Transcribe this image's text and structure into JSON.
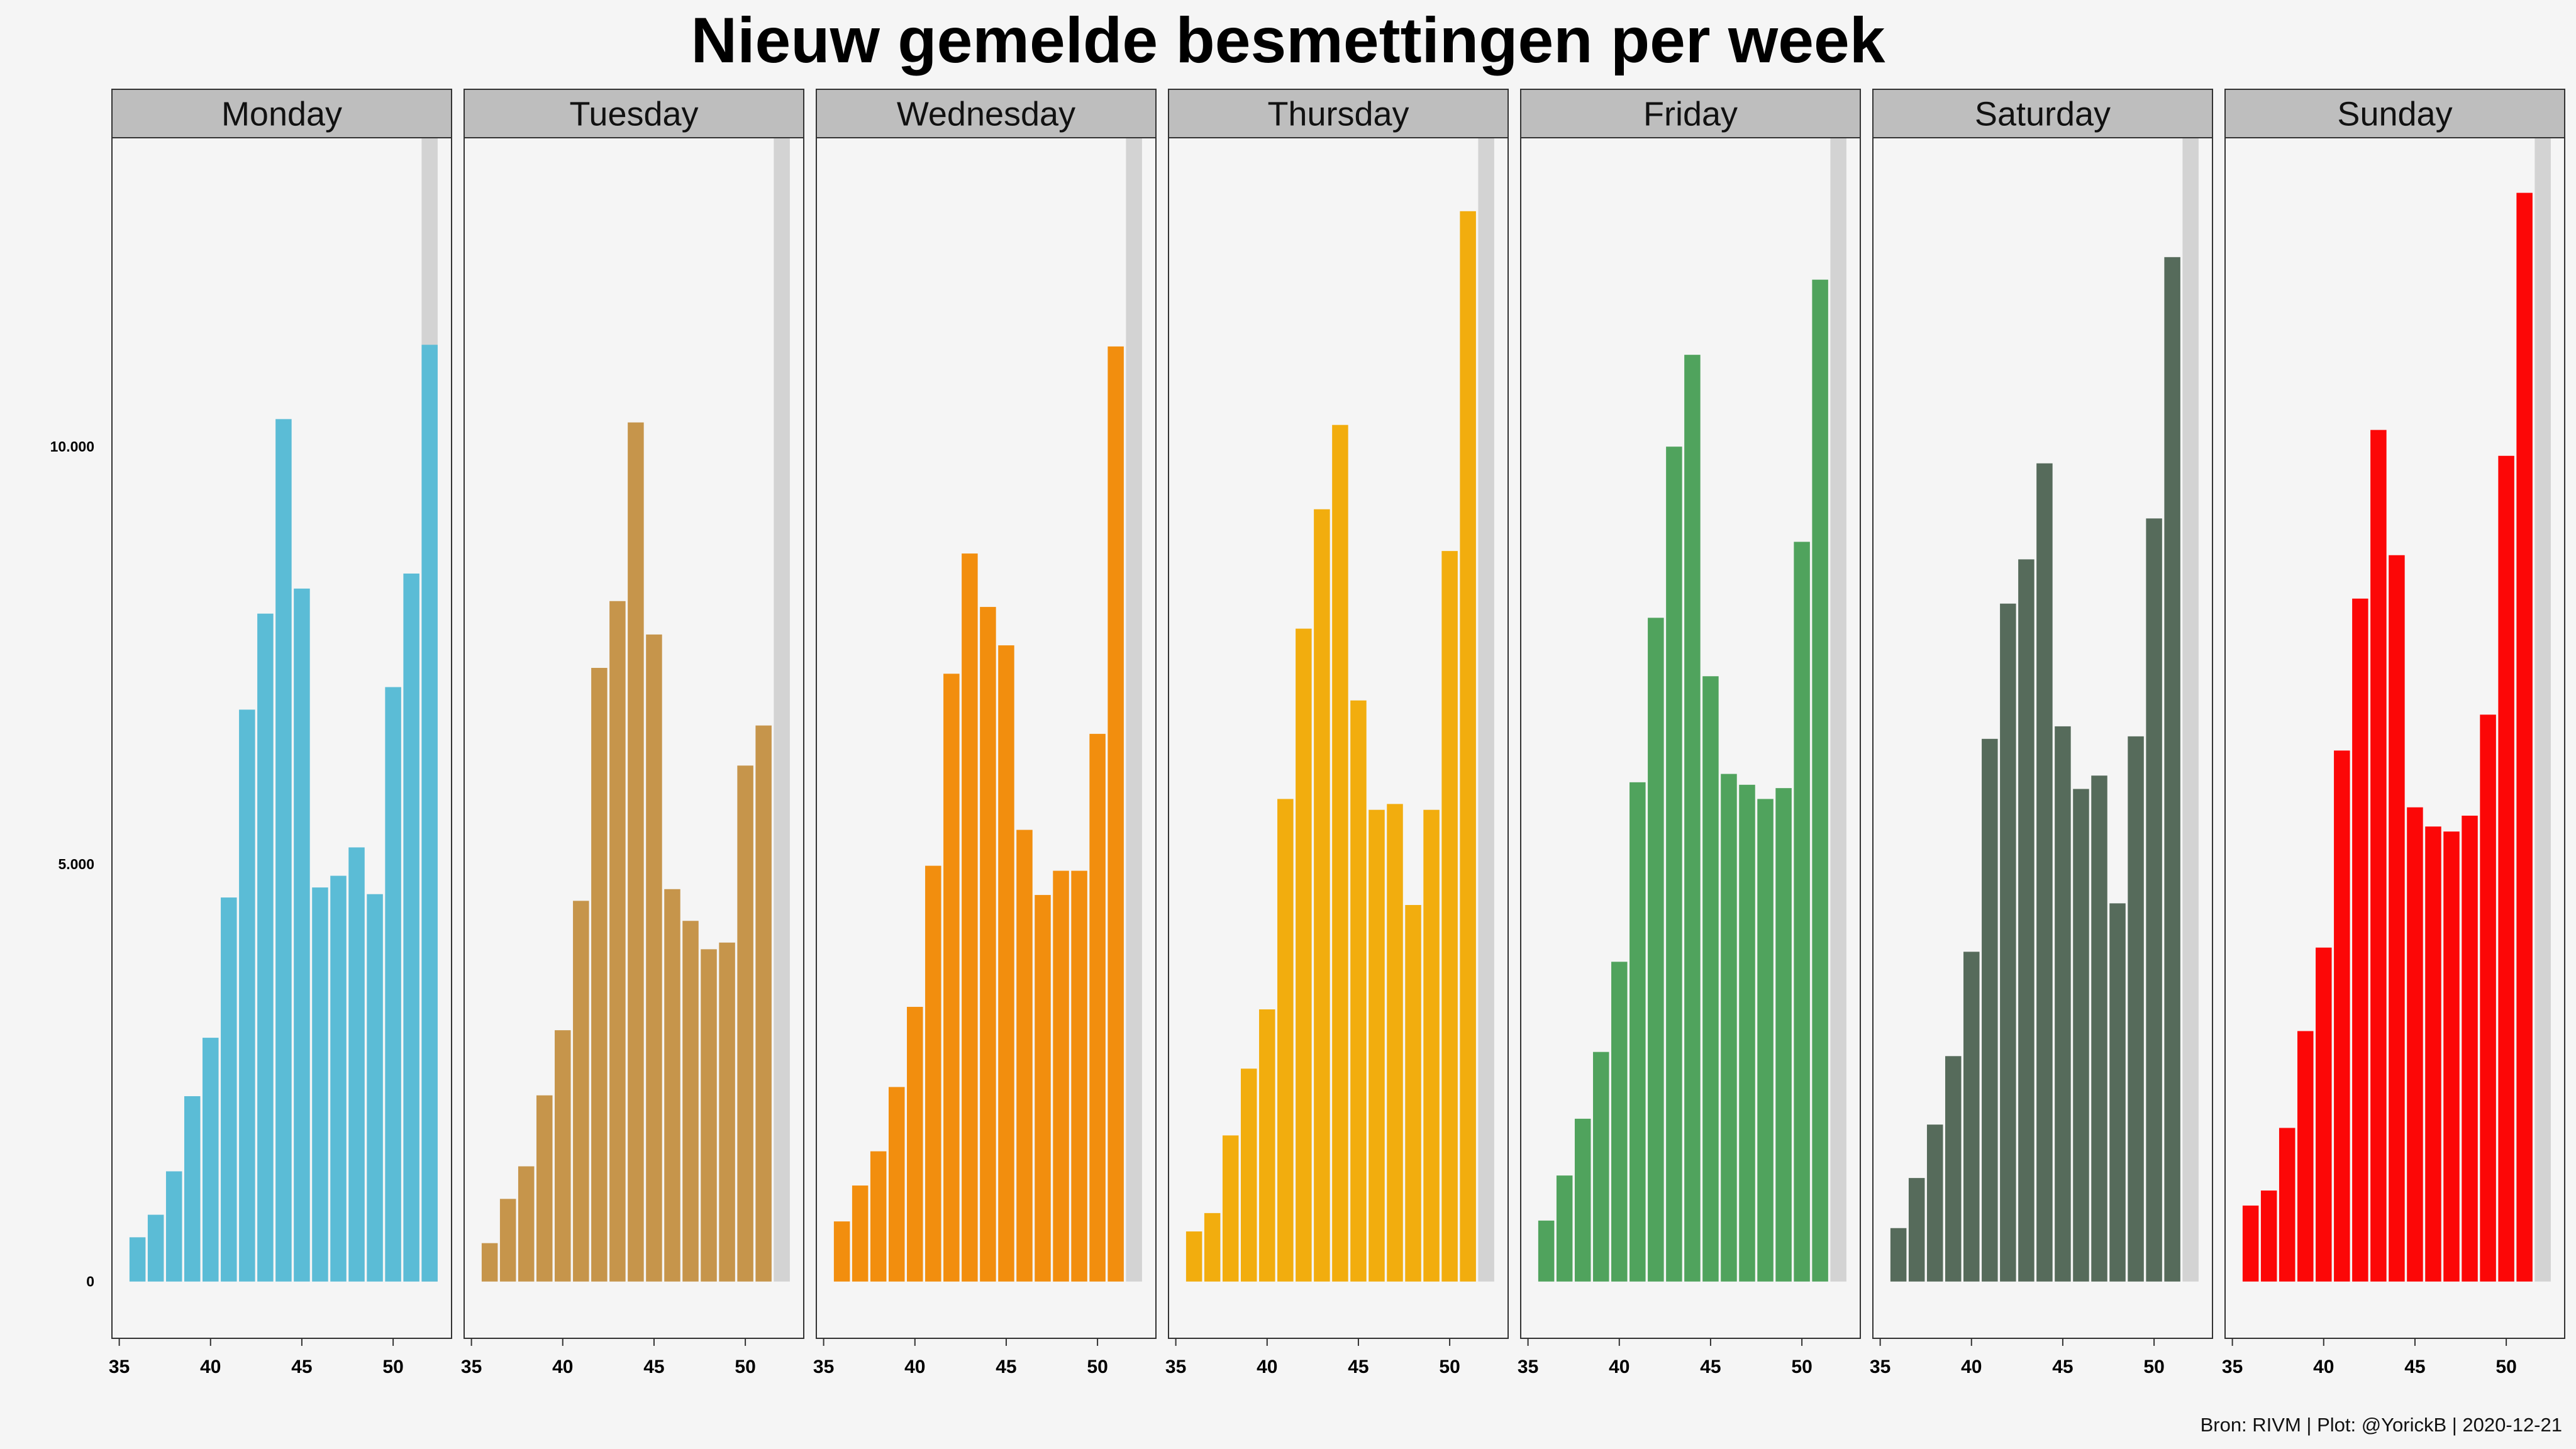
{
  "title": "Nieuw gemelde besmettingen per week",
  "caption": "Bron: RIVM | Plot: @YorickB |  2020-12-21",
  "chart_data": {
    "type": "bar",
    "layout": "facets",
    "title": "Nieuw gemelde besmettingen per week",
    "xlabel": "",
    "ylabel": "",
    "weeks": [
      36,
      37,
      38,
      39,
      40,
      41,
      42,
      43,
      44,
      45,
      46,
      47,
      48,
      49,
      50,
      51,
      52
    ],
    "x_ticks": [
      "35",
      "40",
      "45",
      "50"
    ],
    "x_tick_values": [
      35,
      40,
      45,
      50
    ],
    "xlim": [
      34.6,
      53.2
    ],
    "y_ticks": [
      "0",
      "5.000",
      "10.000"
    ],
    "y_tick_values": [
      0,
      5000,
      10000
    ],
    "ylim": [
      -680,
      13700
    ],
    "incomplete_week": 52,
    "incomplete_week_band_value": 13700,
    "incomplete_week_color": "#d3d3d3",
    "strip_color": "#bebebe",
    "series": [
      {
        "name": "Monday",
        "color": "#5bbcd6",
        "values": [
          530,
          800,
          1320,
          2220,
          2920,
          4600,
          6850,
          8000,
          10330,
          8300,
          4720,
          4860,
          5200,
          4640,
          7120,
          8480,
          11220
        ]
      },
      {
        "name": "Tuesday",
        "color": "#c6954b",
        "values": [
          460,
          990,
          1380,
          2230,
          3010,
          4560,
          7350,
          8150,
          10290,
          7750,
          4700,
          4320,
          3980,
          4060,
          6180,
          6660
        ]
      },
      {
        "name": "Wednesday",
        "color": "#f28e0e",
        "values": [
          720,
          1150,
          1560,
          2330,
          3290,
          4980,
          7280,
          8720,
          8080,
          7620,
          5410,
          4630,
          4920,
          4920,
          6560,
          11200
        ]
      },
      {
        "name": "Thursday",
        "color": "#f2ad0e",
        "values": [
          600,
          820,
          1750,
          2550,
          3260,
          5780,
          7820,
          9250,
          10260,
          6960,
          5650,
          5720,
          4510,
          5650,
          8750,
          12820
        ]
      },
      {
        "name": "Friday",
        "color": "#50a35d",
        "values": [
          730,
          1270,
          1950,
          2750,
          3830,
          5980,
          7950,
          10000,
          11100,
          7250,
          6080,
          5950,
          5780,
          5910,
          8860,
          12000
        ]
      },
      {
        "name": "Saturday",
        "color": "#566b5b",
        "values": [
          640,
          1240,
          1880,
          2700,
          3950,
          6500,
          8120,
          8650,
          9800,
          6650,
          5900,
          6060,
          4530,
          6530,
          9140,
          12270
        ]
      },
      {
        "name": "Sunday",
        "color": "#fc0707",
        "values": [
          910,
          1090,
          1840,
          3000,
          4000,
          6360,
          8180,
          10200,
          8700,
          5680,
          5450,
          5390,
          5580,
          6790,
          9890,
          13040
        ]
      }
    ]
  }
}
